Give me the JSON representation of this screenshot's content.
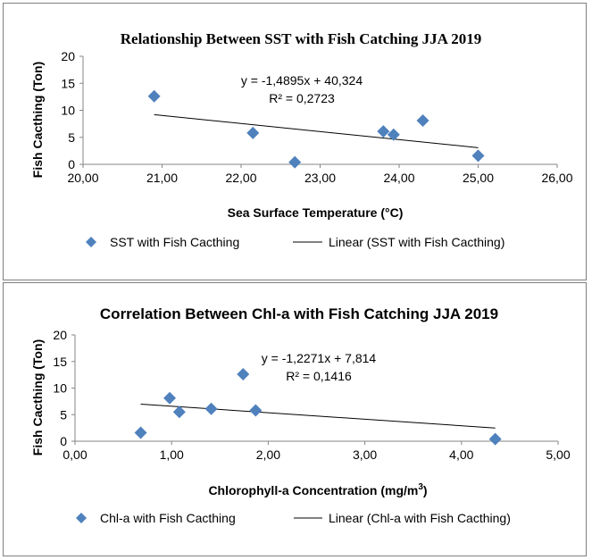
{
  "chart_data": [
    {
      "type": "scatter",
      "title": "Relationship Between SST with Fish Catching JJA 2019",
      "xlabel": "Sea Surface Temperature (°C)",
      "ylabel": "Fish Cacthing (Ton)",
      "xlim": [
        20,
        26
      ],
      "ylim": [
        0,
        20
      ],
      "x_ticks": [
        "20,00",
        "21,00",
        "22,00",
        "23,00",
        "24,00",
        "25,00",
        "26,00"
      ],
      "y_ticks": [
        "0",
        "5",
        "10",
        "15",
        "20"
      ],
      "series": [
        {
          "name": "SST with Fish Cacthing",
          "x": [
            20.9,
            22.15,
            22.68,
            23.8,
            23.93,
            24.3,
            25.0
          ],
          "y": [
            12.6,
            5.8,
            0.4,
            6.1,
            5.5,
            8.1,
            1.6
          ]
        }
      ],
      "trendline": {
        "name": "Linear (SST with Fish Cacthing)",
        "slope": -1.4895,
        "intercept": 40.324,
        "x_range": [
          20.9,
          25.0
        ],
        "equation": "y = -1,4895x + 40,324",
        "r2": "R² = 0,2723"
      },
      "legend": "bottom",
      "marker_color": "#4f81bd"
    },
    {
      "type": "scatter",
      "title": "Correlation Between Chl-a with Fish Catching JJA 2019",
      "xlabel_main": "Chlorophyll-a Concentration (mg/m",
      "xlabel_sup": "3",
      "xlabel_end": ")",
      "ylabel": "Fish Cacthing (Ton)",
      "xlim": [
        0,
        5
      ],
      "ylim": [
        0,
        20
      ],
      "x_ticks": [
        "0,00",
        "1,00",
        "2,00",
        "3,00",
        "4,00",
        "5,00"
      ],
      "y_ticks": [
        "0",
        "5",
        "10",
        "15",
        "20"
      ],
      "series": [
        {
          "name": "Chl-a with Fish Cacthing",
          "x": [
            0.68,
            0.98,
            1.08,
            1.41,
            1.74,
            1.87,
            4.35
          ],
          "y": [
            1.6,
            8.1,
            5.5,
            6.1,
            12.6,
            5.8,
            0.4
          ]
        }
      ],
      "trendline": {
        "name": "Linear (Chl-a with Fish Cacthing)",
        "slope": -1.2271,
        "intercept": 7.814,
        "x_range": [
          0.68,
          4.35
        ],
        "equation": "y = -1,2271x + 7,814",
        "r2": "R² = 0,1416"
      },
      "legend": "bottom",
      "marker_color": "#4f81bd"
    }
  ]
}
